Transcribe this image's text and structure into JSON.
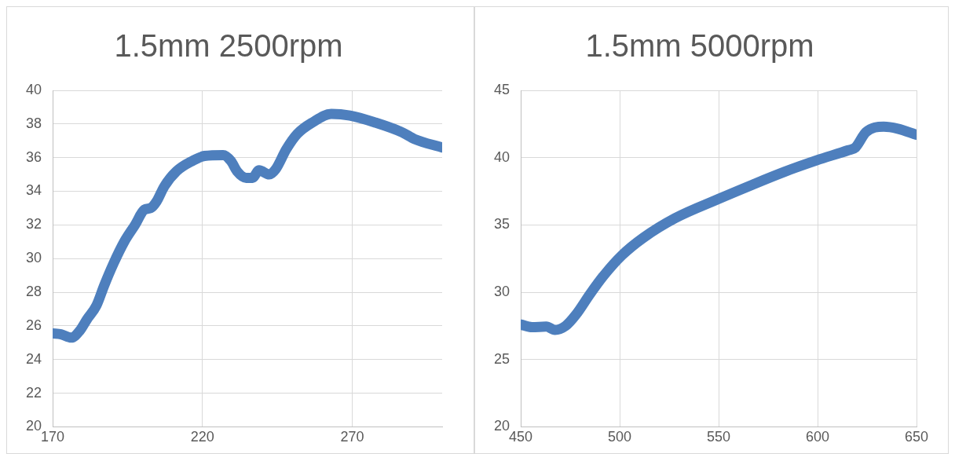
{
  "chart_data": [
    {
      "type": "line",
      "title": "1.5mm 2500rpm",
      "xlim": [
        170,
        300
      ],
      "xticks": [
        170,
        220,
        270
      ],
      "ylim": [
        20,
        40
      ],
      "yticks": [
        20,
        22,
        24,
        26,
        28,
        30,
        32,
        34,
        36,
        38,
        40
      ],
      "grid": true,
      "series": [
        {
          "color": "#4e7fbd",
          "x": [
            170,
            172.8,
            176.2,
            179,
            181.5,
            184.6,
            187.2,
            190.3,
            193.9,
            197.5,
            200.6,
            202.7,
            204.7,
            207.3,
            211.4,
            216.6,
            220.7,
            226.9,
            229.5,
            231.5,
            234.6,
            236.7,
            238.9,
            242.3,
            244.4,
            248,
            251.6,
            256.8,
            263,
            269.2,
            277.4,
            286.7,
            290.8,
            300
          ],
          "values": [
            25.55,
            25.5,
            25.3,
            25.7,
            26.4,
            27.2,
            28.4,
            29.7,
            31.0,
            32.0,
            32.9,
            33.0,
            33.4,
            34.3,
            35.2,
            35.8,
            36.1,
            36.15,
            35.8,
            35.2,
            34.8,
            34.8,
            35.25,
            35.0,
            35.3,
            36.5,
            37.4,
            38.1,
            38.6,
            38.5,
            38.1,
            37.5,
            37.1,
            36.6
          ]
        }
      ]
    },
    {
      "type": "line",
      "title": "1.5mm 5000rpm",
      "xlim": [
        450,
        650
      ],
      "xticks": [
        450,
        500,
        550,
        600,
        650
      ],
      "ylim": [
        20,
        45
      ],
      "yticks": [
        20,
        25,
        30,
        35,
        40,
        45
      ],
      "grid": true,
      "series": [
        {
          "color": "#4e7fbd",
          "x": [
            450,
            455.7,
            462.9,
            467.3,
            472.7,
            478,
            485.2,
            492.3,
            501.2,
            512,
            528,
            549.5,
            567.3,
            583.4,
            599.5,
            615.5,
            619.1,
            624.5,
            633.4,
            640.5,
            650
          ],
          "values": [
            27.6,
            27.4,
            27.45,
            27.2,
            27.5,
            28.35,
            29.9,
            31.3,
            32.75,
            34.05,
            35.5,
            36.9,
            38.0,
            38.95,
            39.8,
            40.55,
            40.75,
            41.9,
            42.3,
            42.15,
            41.7
          ]
        }
      ]
    }
  ]
}
